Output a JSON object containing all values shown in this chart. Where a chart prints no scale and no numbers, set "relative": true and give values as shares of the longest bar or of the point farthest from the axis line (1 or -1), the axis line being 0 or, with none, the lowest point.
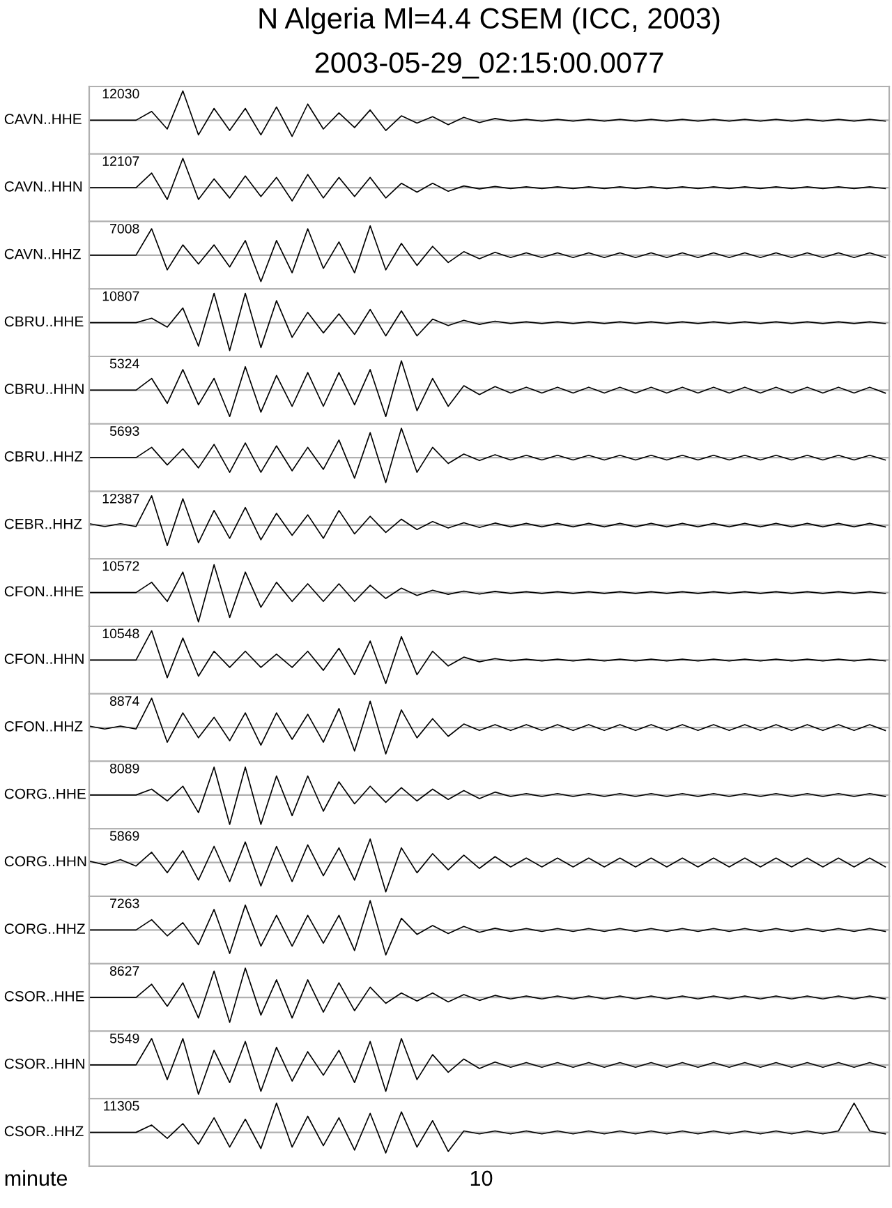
{
  "chart_data": [
    {
      "type": "line",
      "title": "N Algeria Ml=4.4 CSEM (ICC, 2003)",
      "subtitle": "2003-05-29_02:15:00.0077",
      "ylabel": "CAVN..HHE",
      "annotations": [
        "12030"
      ],
      "relative": true,
      "color": "#000000",
      "categories": [
        null,
        null,
        null,
        null,
        null,
        null,
        null,
        null,
        null,
        null,
        null,
        null,
        null,
        null,
        null,
        null,
        null,
        null,
        null,
        null,
        null,
        null,
        null,
        null,
        null,
        null,
        null,
        null,
        null,
        null,
        null,
        null,
        null,
        null,
        null,
        null,
        null,
        null,
        null,
        null,
        null,
        null,
        null,
        null,
        null,
        null,
        null,
        null,
        null,
        null,
        null,
        null
      ],
      "values": [
        0,
        0,
        0,
        0,
        0.3,
        -0.3,
        1.0,
        -0.5,
        0.4,
        -0.35,
        0.4,
        -0.5,
        0.45,
        -0.55,
        0.55,
        -0.3,
        0.25,
        -0.25,
        0.35,
        -0.35,
        0.15,
        -0.1,
        0.12,
        -0.15,
        0.1,
        -0.08,
        0.06,
        -0.03,
        0.03,
        -0.03,
        0.03,
        -0.03,
        0.03,
        -0.03,
        0.03,
        -0.03,
        0.03,
        -0.03,
        0.03,
        -0.03,
        0.03,
        -0.03,
        0.03,
        -0.03,
        0.03,
        -0.03,
        0.03,
        -0.03,
        0.03,
        -0.03,
        0.03,
        -0.03
      ]
    },
    {
      "type": "line",
      "ylabel": "CAVN..HHN",
      "annotations": [
        "12107"
      ],
      "relative": true,
      "color": "#000000",
      "categories": [
        null,
        null,
        null,
        null,
        null,
        null,
        null,
        null,
        null,
        null,
        null,
        null,
        null,
        null,
        null,
        null,
        null,
        null,
        null,
        null,
        null,
        null,
        null,
        null,
        null,
        null,
        null,
        null,
        null,
        null,
        null,
        null,
        null,
        null,
        null,
        null,
        null,
        null,
        null,
        null,
        null,
        null,
        null,
        null,
        null,
        null,
        null,
        null,
        null,
        null,
        null,
        null
      ],
      "values": [
        0,
        0,
        0,
        0,
        0.5,
        -0.4,
        1.0,
        -0.4,
        0.3,
        -0.35,
        0.4,
        -0.3,
        0.35,
        -0.45,
        0.45,
        -0.35,
        0.35,
        -0.3,
        0.35,
        -0.35,
        0.15,
        -0.15,
        0.15,
        -0.12,
        0.06,
        -0.04,
        0.04,
        -0.03,
        0.03,
        -0.03,
        0.03,
        -0.03,
        0.03,
        -0.03,
        0.03,
        -0.03,
        0.03,
        -0.03,
        0.03,
        -0.03,
        0.03,
        -0.03,
        0.03,
        -0.03,
        0.03,
        -0.03,
        0.03,
        -0.03,
        0.03,
        -0.03,
        0.03,
        -0.03
      ]
    },
    {
      "type": "line",
      "ylabel": "CAVN..HHZ",
      "annotations": [
        "7008"
      ],
      "relative": true,
      "color": "#000000",
      "categories": [
        null,
        null,
        null,
        null,
        null,
        null,
        null,
        null,
        null,
        null,
        null,
        null,
        null,
        null,
        null,
        null,
        null,
        null,
        null,
        null,
        null,
        null,
        null,
        null,
        null,
        null,
        null,
        null,
        null,
        null,
        null,
        null,
        null,
        null,
        null,
        null,
        null,
        null,
        null,
        null,
        null,
        null,
        null,
        null,
        null,
        null,
        null,
        null,
        null,
        null,
        null,
        null
      ],
      "values": [
        0,
        0,
        0,
        0,
        0.9,
        -0.5,
        0.35,
        -0.3,
        0.35,
        -0.4,
        0.5,
        -0.9,
        0.5,
        -0.6,
        0.9,
        -0.45,
        0.45,
        -0.6,
        1.0,
        -0.5,
        0.4,
        -0.35,
        0.3,
        -0.25,
        0.12,
        -0.12,
        0.1,
        -0.08,
        0.08,
        -0.08,
        0.08,
        -0.08,
        0.08,
        -0.08,
        0.08,
        -0.08,
        0.08,
        -0.08,
        0.08,
        -0.08,
        0.08,
        -0.08,
        0.08,
        -0.08,
        0.08,
        -0.08,
        0.08,
        -0.08,
        0.08,
        -0.08,
        0.08,
        -0.08
      ]
    },
    {
      "type": "line",
      "ylabel": "CBRU..HHE",
      "annotations": [
        "10807"
      ],
      "relative": true,
      "color": "#000000",
      "categories": [
        null,
        null,
        null,
        null,
        null,
        null,
        null,
        null,
        null,
        null,
        null,
        null,
        null,
        null,
        null,
        null,
        null,
        null,
        null,
        null,
        null,
        null,
        null,
        null,
        null,
        null,
        null,
        null,
        null,
        null,
        null,
        null,
        null,
        null,
        null,
        null,
        null,
        null,
        null,
        null,
        null,
        null,
        null,
        null,
        null,
        null,
        null,
        null,
        null,
        null,
        null,
        null
      ],
      "values": [
        0,
        0,
        0,
        0,
        0.15,
        -0.15,
        0.5,
        -0.8,
        1.0,
        -0.95,
        1.0,
        -0.85,
        0.75,
        -0.5,
        0.35,
        -0.35,
        0.3,
        -0.4,
        0.45,
        -0.45,
        0.4,
        -0.45,
        0.12,
        -0.1,
        0.08,
        -0.06,
        0.05,
        -0.03,
        0.03,
        -0.03,
        0.03,
        -0.03,
        0.03,
        -0.03,
        0.03,
        -0.03,
        0.03,
        -0.03,
        0.03,
        -0.03,
        0.03,
        -0.03,
        0.03,
        -0.03,
        0.03,
        -0.03,
        0.03,
        -0.03,
        0.03,
        -0.03,
        0.03,
        -0.03
      ]
    },
    {
      "type": "line",
      "ylabel": "CBRU..HHN",
      "annotations": [
        "5324"
      ],
      "relative": true,
      "color": "#000000",
      "categories": [
        null,
        null,
        null,
        null,
        null,
        null,
        null,
        null,
        null,
        null,
        null,
        null,
        null,
        null,
        null,
        null,
        null,
        null,
        null,
        null,
        null,
        null,
        null,
        null,
        null,
        null,
        null,
        null,
        null,
        null,
        null,
        null,
        null,
        null,
        null,
        null,
        null,
        null,
        null,
        null,
        null,
        null,
        null,
        null,
        null,
        null,
        null,
        null,
        null,
        null,
        null,
        null
      ],
      "values": [
        0,
        0,
        0,
        0,
        0.4,
        -0.45,
        0.7,
        -0.5,
        0.4,
        -0.9,
        0.8,
        -0.75,
        0.5,
        -0.55,
        0.6,
        -0.55,
        0.6,
        -0.5,
        0.7,
        -0.9,
        1.0,
        -0.7,
        0.4,
        -0.55,
        0.15,
        -0.15,
        0.12,
        -0.1,
        0.1,
        -0.1,
        0.1,
        -0.1,
        0.1,
        -0.1,
        0.1,
        -0.1,
        0.1,
        -0.1,
        0.1,
        -0.1,
        0.1,
        -0.1,
        0.1,
        -0.1,
        0.1,
        -0.1,
        0.1,
        -0.1,
        0.1,
        -0.1,
        0.1,
        -0.1
      ]
    },
    {
      "type": "line",
      "ylabel": "CBRU..HHZ",
      "annotations": [
        "5693"
      ],
      "relative": true,
      "color": "#000000",
      "categories": [
        null,
        null,
        null,
        null,
        null,
        null,
        null,
        null,
        null,
        null,
        null,
        null,
        null,
        null,
        null,
        null,
        null,
        null,
        null,
        null,
        null,
        null,
        null,
        null,
        null,
        null,
        null,
        null,
        null,
        null,
        null,
        null,
        null,
        null,
        null,
        null,
        null,
        null,
        null,
        null,
        null,
        null,
        null,
        null,
        null,
        null,
        null,
        null,
        null,
        null,
        null,
        null
      ],
      "values": [
        0,
        0,
        0,
        0,
        0.35,
        -0.25,
        0.3,
        -0.35,
        0.45,
        -0.5,
        0.5,
        -0.5,
        0.4,
        -0.45,
        0.35,
        -0.4,
        0.6,
        -0.7,
        0.85,
        -0.85,
        1.0,
        -0.5,
        0.35,
        -0.2,
        0.12,
        -0.1,
        0.1,
        -0.08,
        0.08,
        -0.08,
        0.08,
        -0.08,
        0.08,
        -0.08,
        0.08,
        -0.08,
        0.08,
        -0.08,
        0.08,
        -0.08,
        0.08,
        -0.08,
        0.08,
        -0.08,
        0.08,
        -0.08,
        0.08,
        -0.08,
        0.08,
        -0.08,
        0.08,
        -0.08
      ]
    },
    {
      "type": "line",
      "ylabel": "CEBR..HHZ",
      "annotations": [
        "12387"
      ],
      "relative": true,
      "color": "#000000",
      "categories": [
        null,
        null,
        null,
        null,
        null,
        null,
        null,
        null,
        null,
        null,
        null,
        null,
        null,
        null,
        null,
        null,
        null,
        null,
        null,
        null,
        null,
        null,
        null,
        null,
        null,
        null,
        null,
        null,
        null,
        null,
        null,
        null,
        null,
        null,
        null,
        null,
        null,
        null,
        null,
        null,
        null,
        null,
        null,
        null,
        null,
        null,
        null,
        null,
        null,
        null,
        null,
        null
      ],
      "values": [
        0.05,
        -0.05,
        0.05,
        -0.05,
        1.0,
        -0.7,
        0.9,
        -0.6,
        0.5,
        -0.45,
        0.6,
        -0.5,
        0.4,
        -0.35,
        0.35,
        -0.45,
        0.5,
        -0.3,
        0.3,
        -0.25,
        0.2,
        -0.15,
        0.12,
        -0.1,
        0.08,
        -0.08,
        0.07,
        -0.06,
        0.06,
        -0.06,
        0.06,
        -0.06,
        0.06,
        -0.06,
        0.06,
        -0.06,
        0.06,
        -0.06,
        0.06,
        -0.06,
        0.06,
        -0.06,
        0.06,
        -0.06,
        0.06,
        -0.06,
        0.06,
        -0.06,
        0.06,
        -0.06,
        0.06,
        -0.06
      ]
    },
    {
      "type": "line",
      "ylabel": "CFON..HHE",
      "annotations": [
        "10572"
      ],
      "relative": true,
      "color": "#000000",
      "categories": [
        null,
        null,
        null,
        null,
        null,
        null,
        null,
        null,
        null,
        null,
        null,
        null,
        null,
        null,
        null,
        null,
        null,
        null,
        null,
        null,
        null,
        null,
        null,
        null,
        null,
        null,
        null,
        null,
        null,
        null,
        null,
        null,
        null,
        null,
        null,
        null,
        null,
        null,
        null,
        null,
        null,
        null,
        null,
        null,
        null,
        null,
        null,
        null,
        null,
        null,
        null,
        null
      ],
      "values": [
        0,
        0,
        0,
        0,
        0.35,
        -0.3,
        0.7,
        -1.0,
        0.95,
        -0.85,
        0.7,
        -0.5,
        0.35,
        -0.3,
        0.3,
        -0.3,
        0.3,
        -0.3,
        0.25,
        -0.2,
        0.15,
        -0.1,
        0.08,
        -0.06,
        0.05,
        -0.05,
        0.04,
        -0.03,
        0.03,
        -0.03,
        0.03,
        -0.03,
        0.03,
        -0.03,
        0.03,
        -0.03,
        0.03,
        -0.03,
        0.03,
        -0.03,
        0.03,
        -0.03,
        0.03,
        -0.03,
        0.03,
        -0.03,
        0.03,
        -0.03,
        0.03,
        -0.03,
        0.03,
        -0.03
      ]
    },
    {
      "type": "line",
      "ylabel": "CFON..HHN",
      "annotations": [
        "10548"
      ],
      "relative": true,
      "color": "#000000",
      "categories": [
        null,
        null,
        null,
        null,
        null,
        null,
        null,
        null,
        null,
        null,
        null,
        null,
        null,
        null,
        null,
        null,
        null,
        null,
        null,
        null,
        null,
        null,
        null,
        null,
        null,
        null,
        null,
        null,
        null,
        null,
        null,
        null,
        null,
        null,
        null,
        null,
        null,
        null,
        null,
        null,
        null,
        null,
        null,
        null,
        null,
        null,
        null,
        null,
        null,
        null,
        null,
        null
      ],
      "values": [
        0,
        0,
        0,
        0,
        1.0,
        -0.6,
        0.75,
        -0.55,
        0.3,
        -0.25,
        0.3,
        -0.25,
        0.2,
        -0.25,
        0.3,
        -0.35,
        0.4,
        -0.5,
        0.65,
        -0.8,
        0.8,
        -0.5,
        0.3,
        -0.2,
        0.1,
        -0.06,
        0.05,
        -0.03,
        0.03,
        -0.03,
        0.03,
        -0.03,
        0.03,
        -0.03,
        0.03,
        -0.03,
        0.03,
        -0.03,
        0.03,
        -0.03,
        0.03,
        -0.03,
        0.03,
        -0.03,
        0.03,
        -0.03,
        0.03,
        -0.03,
        0.03,
        -0.03,
        0.03,
        -0.03
      ]
    },
    {
      "type": "line",
      "ylabel": "CFON..HHZ",
      "annotations": [
        "8874"
      ],
      "relative": true,
      "color": "#000000",
      "categories": [
        null,
        null,
        null,
        null,
        null,
        null,
        null,
        null,
        null,
        null,
        null,
        null,
        null,
        null,
        null,
        null,
        null,
        null,
        null,
        null,
        null,
        null,
        null,
        null,
        null,
        null,
        null,
        null,
        null,
        null,
        null,
        null,
        null,
        null,
        null,
        null,
        null,
        null,
        null,
        null,
        null,
        null,
        null,
        null,
        null,
        null,
        null,
        null,
        null,
        null,
        null,
        null
      ],
      "values": [
        0.05,
        -0.05,
        0.05,
        -0.05,
        1.0,
        -0.5,
        0.5,
        -0.35,
        0.35,
        -0.45,
        0.5,
        -0.6,
        0.5,
        -0.4,
        0.45,
        -0.5,
        0.65,
        -0.8,
        0.9,
        -0.9,
        0.6,
        -0.35,
        0.3,
        -0.3,
        0.12,
        -0.1,
        0.1,
        -0.1,
        0.1,
        -0.1,
        0.1,
        -0.1,
        0.1,
        -0.1,
        0.1,
        -0.1,
        0.1,
        -0.1,
        0.1,
        -0.1,
        0.1,
        -0.1,
        0.1,
        -0.1,
        0.1,
        -0.1,
        0.1,
        -0.1,
        0.1,
        -0.1,
        0.1,
        -0.1
      ]
    },
    {
      "type": "line",
      "ylabel": "CORG..HHE",
      "annotations": [
        "8089"
      ],
      "relative": true,
      "color": "#000000",
      "categories": [
        null,
        null,
        null,
        null,
        null,
        null,
        null,
        null,
        null,
        null,
        null,
        null,
        null,
        null,
        null,
        null,
        null,
        null,
        null,
        null,
        null,
        null,
        null,
        null,
        null,
        null,
        null,
        null,
        null,
        null,
        null,
        null,
        null,
        null,
        null,
        null,
        null,
        null,
        null,
        null,
        null,
        null,
        null,
        null,
        null,
        null,
        null,
        null,
        null,
        null,
        null,
        null
      ],
      "values": [
        0,
        0,
        0,
        0,
        0.2,
        -0.2,
        0.3,
        -0.6,
        0.95,
        -1.0,
        0.95,
        -1.0,
        0.65,
        -0.7,
        0.65,
        -0.55,
        0.45,
        -0.3,
        0.3,
        -0.25,
        0.25,
        -0.2,
        0.2,
        -0.15,
        0.15,
        -0.12,
        0.1,
        -0.05,
        0.05,
        -0.05,
        0.05,
        -0.05,
        0.05,
        -0.05,
        0.05,
        -0.05,
        0.05,
        -0.05,
        0.05,
        -0.05,
        0.05,
        -0.05,
        0.05,
        -0.05,
        0.05,
        -0.05,
        0.05,
        -0.05,
        0.05,
        -0.05,
        0.05,
        -0.05
      ]
    },
    {
      "type": "line",
      "ylabel": "CORG..HHN",
      "annotations": [
        "5869"
      ],
      "relative": true,
      "color": "#000000",
      "categories": [
        null,
        null,
        null,
        null,
        null,
        null,
        null,
        null,
        null,
        null,
        null,
        null,
        null,
        null,
        null,
        null,
        null,
        null,
        null,
        null,
        null,
        null,
        null,
        null,
        null,
        null,
        null,
        null,
        null,
        null,
        null,
        null,
        null,
        null,
        null,
        null,
        null,
        null,
        null,
        null,
        null,
        null,
        null,
        null,
        null,
        null,
        null,
        null,
        null,
        null,
        null,
        null
      ],
      "values": [
        0.05,
        -0.08,
        0.1,
        -0.12,
        0.35,
        -0.35,
        0.4,
        -0.6,
        0.55,
        -0.65,
        0.7,
        -0.8,
        0.55,
        -0.65,
        0.6,
        -0.45,
        0.5,
        -0.6,
        0.8,
        -1.0,
        0.5,
        -0.35,
        0.3,
        -0.25,
        0.25,
        -0.2,
        0.2,
        -0.15,
        0.15,
        -0.15,
        0.15,
        -0.15,
        0.15,
        -0.15,
        0.15,
        -0.15,
        0.15,
        -0.15,
        0.15,
        -0.15,
        0.15,
        -0.15,
        0.15,
        -0.15,
        0.15,
        -0.15,
        0.15,
        -0.15,
        0.15,
        -0.15,
        0.15,
        -0.15
      ]
    },
    {
      "type": "line",
      "ylabel": "CORG..HHZ",
      "annotations": [
        "7263"
      ],
      "relative": true,
      "color": "#000000",
      "categories": [
        null,
        null,
        null,
        null,
        null,
        null,
        null,
        null,
        null,
        null,
        null,
        null,
        null,
        null,
        null,
        null,
        null,
        null,
        null,
        null,
        null,
        null,
        null,
        null,
        null,
        null,
        null,
        null,
        null,
        null,
        null,
        null,
        null,
        null,
        null,
        null,
        null,
        null,
        null,
        null,
        null,
        null,
        null,
        null,
        null,
        null,
        null,
        null,
        null,
        null,
        null,
        null
      ],
      "values": [
        0,
        0,
        0,
        0,
        0.35,
        -0.2,
        0.25,
        -0.5,
        0.7,
        -0.8,
        0.85,
        -0.55,
        0.5,
        -0.55,
        0.5,
        -0.45,
        0.5,
        -0.7,
        1.0,
        -0.85,
        0.4,
        -0.15,
        0.15,
        -0.12,
        0.12,
        -0.08,
        0.06,
        -0.05,
        0.05,
        -0.05,
        0.05,
        -0.05,
        0.05,
        -0.05,
        0.05,
        -0.05,
        0.05,
        -0.05,
        0.05,
        -0.05,
        0.05,
        -0.05,
        0.05,
        -0.05,
        0.05,
        -0.05,
        0.05,
        -0.05,
        0.05,
        -0.05,
        0.05,
        -0.05
      ]
    },
    {
      "type": "line",
      "ylabel": "CSOR..HHE",
      "annotations": [
        "8627"
      ],
      "relative": true,
      "color": "#000000",
      "categories": [
        null,
        null,
        null,
        null,
        null,
        null,
        null,
        null,
        null,
        null,
        null,
        null,
        null,
        null,
        null,
        null,
        null,
        null,
        null,
        null,
        null,
        null,
        null,
        null,
        null,
        null,
        null,
        null,
        null,
        null,
        null,
        null,
        null,
        null,
        null,
        null,
        null,
        null,
        null,
        null,
        null,
        null,
        null,
        null,
        null,
        null,
        null,
        null,
        null,
        null,
        null,
        null
      ],
      "values": [
        0,
        0,
        0,
        0,
        0.45,
        -0.3,
        0.5,
        -0.7,
        0.9,
        -0.85,
        1.0,
        -0.6,
        0.6,
        -0.7,
        0.6,
        -0.5,
        0.5,
        -0.45,
        0.35,
        -0.2,
        0.15,
        -0.12,
        0.15,
        -0.15,
        0.1,
        -0.1,
        0.07,
        -0.05,
        0.05,
        -0.05,
        0.05,
        -0.05,
        0.05,
        -0.05,
        0.05,
        -0.05,
        0.05,
        -0.05,
        0.05,
        -0.05,
        0.05,
        -0.05,
        0.05,
        -0.05,
        0.05,
        -0.05,
        0.05,
        -0.05,
        0.05,
        -0.05,
        0.05,
        -0.05
      ]
    },
    {
      "type": "line",
      "ylabel": "CSOR..HHN",
      "annotations": [
        "5549"
      ],
      "relative": true,
      "color": "#000000",
      "categories": [
        null,
        null,
        null,
        null,
        null,
        null,
        null,
        null,
        null,
        null,
        null,
        null,
        null,
        null,
        null,
        null,
        null,
        null,
        null,
        null,
        null,
        null,
        null,
        null,
        null,
        null,
        null,
        null,
        null,
        null,
        null,
        null,
        null,
        null,
        null,
        null,
        null,
        null,
        null,
        null,
        null,
        null,
        null,
        null,
        null,
        null,
        null,
        null,
        null,
        null,
        null,
        null
      ],
      "values": [
        0,
        0,
        0,
        0,
        0.9,
        -0.5,
        0.9,
        -1.0,
        0.5,
        -0.6,
        0.8,
        -0.9,
        0.6,
        -0.55,
        0.45,
        -0.35,
        0.5,
        -0.6,
        0.8,
        -0.9,
        0.9,
        -0.5,
        0.35,
        -0.25,
        0.2,
        -0.12,
        0.1,
        -0.08,
        0.08,
        -0.08,
        0.08,
        -0.08,
        0.08,
        -0.08,
        0.08,
        -0.08,
        0.08,
        -0.08,
        0.08,
        -0.08,
        0.08,
        -0.08,
        0.08,
        -0.08,
        0.08,
        -0.08,
        0.08,
        -0.08,
        0.08,
        -0.08,
        0.08,
        -0.08
      ]
    },
    {
      "type": "line",
      "ylabel": "CSOR..HHZ",
      "annotations": [
        "11305",
        "10"
      ],
      "relative": true,
      "color": "#000000",
      "xlabel": "minute",
      "categories": [
        null,
        null,
        null,
        null,
        null,
        null,
        null,
        null,
        null,
        null,
        null,
        null,
        null,
        null,
        null,
        null,
        null,
        null,
        null,
        null,
        null,
        null,
        null,
        null,
        null,
        null,
        null,
        null,
        null,
        null,
        null,
        null,
        null,
        null,
        null,
        null,
        null,
        null,
        null,
        null,
        null,
        null,
        null,
        null,
        null,
        null,
        null,
        null,
        null,
        null,
        null,
        null
      ],
      "values": [
        0,
        0,
        0,
        0,
        0.25,
        -0.2,
        0.3,
        -0.4,
        0.5,
        -0.5,
        0.45,
        -0.55,
        1.0,
        -0.5,
        0.55,
        -0.45,
        0.5,
        -0.6,
        0.65,
        -0.7,
        0.7,
        -0.5,
        0.4,
        -0.65,
        0.05,
        -0.05,
        0.05,
        -0.05,
        0.05,
        -0.05,
        0.05,
        -0.05,
        0.05,
        -0.05,
        0.05,
        -0.05,
        0.05,
        -0.05,
        0.05,
        -0.05,
        0.05,
        -0.05,
        0.05,
        -0.05,
        0.05,
        -0.05,
        0.05,
        -0.05,
        0.05,
        1.0,
        0.05,
        -0.05
      ]
    }
  ]
}
